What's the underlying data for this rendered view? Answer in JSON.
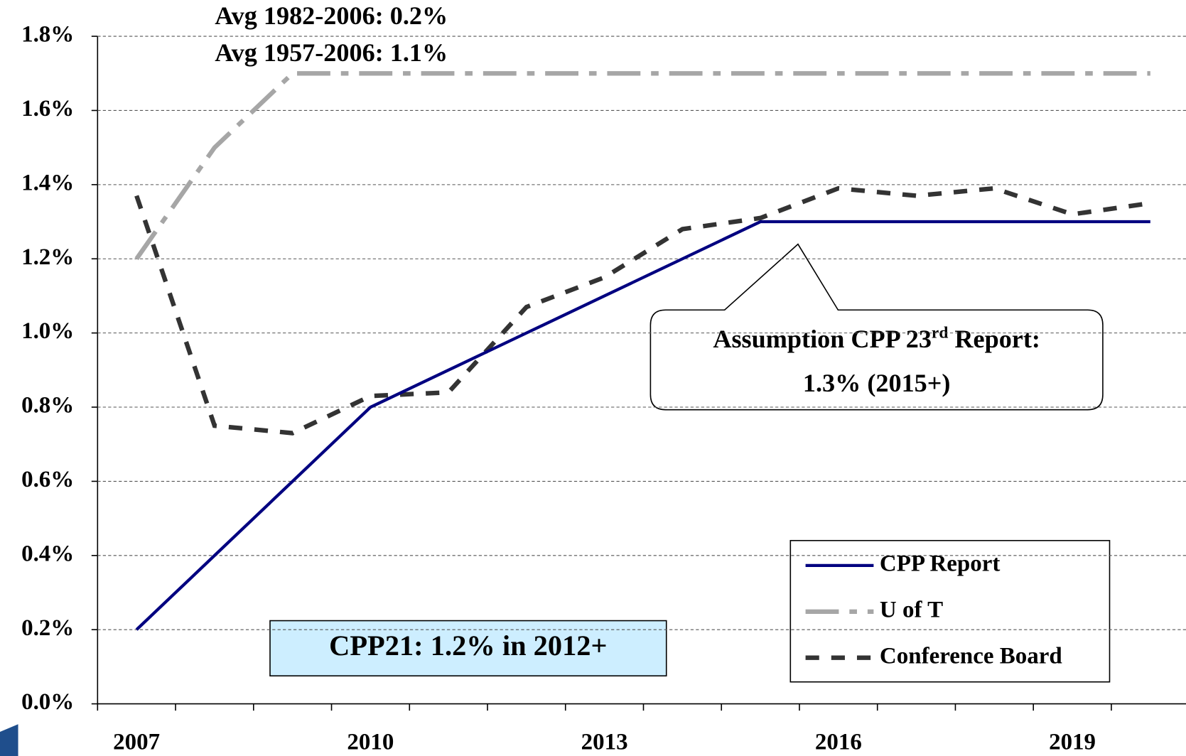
{
  "chart_data": {
    "type": "line",
    "categories": [
      "2007",
      null,
      null,
      "2010",
      null,
      null,
      "2013",
      null,
      null,
      "2016",
      null,
      null,
      "2019",
      null
    ],
    "series": [
      {
        "name": "CPP Report",
        "color": "#000080",
        "line_style": "solid",
        "values": [
          0.2,
          0.4,
          0.6,
          0.8,
          0.9,
          1.0,
          1.1,
          1.2,
          1.3,
          1.3,
          1.3,
          1.3,
          1.3,
          1.3
        ]
      },
      {
        "name": "U of T",
        "color": "#a6a6a6",
        "line_style": "dash-dot",
        "values": [
          1.2,
          1.5,
          1.7,
          1.7,
          1.7,
          1.7,
          1.7,
          1.7,
          1.7,
          1.7,
          1.7,
          1.7,
          1.7,
          1.7
        ]
      },
      {
        "name": "Conference Board",
        "color": "#333333",
        "line_style": "dashed",
        "values": [
          1.37,
          0.75,
          0.73,
          0.83,
          0.84,
          1.07,
          1.15,
          1.28,
          1.31,
          1.39,
          1.37,
          1.39,
          1.32,
          1.35
        ]
      }
    ],
    "ylim": [
      0,
      1.8
    ],
    "yticks": [
      {
        "value": 0,
        "label": "0.0%"
      },
      {
        "value": 0.2,
        "label": "0.2%"
      },
      {
        "value": 0.4,
        "label": "0.4%"
      },
      {
        "value": 0.6,
        "label": "0.6%"
      },
      {
        "value": 0.8,
        "label": "0.8%"
      },
      {
        "value": 1.0,
        "label": "1.0%"
      },
      {
        "value": 1.2,
        "label": "1.2%"
      },
      {
        "value": 1.4,
        "label": "1.4%"
      },
      {
        "value": 1.6,
        "label": "1.6%"
      },
      {
        "value": 1.8,
        "label": "1.8%"
      }
    ],
    "grid": true,
    "legend": "lower right",
    "annotations": {
      "avg_1982": "Avg 1982-2006: 0.2%",
      "avg_1957": "Avg 1957-2006: 1.1%",
      "callout_line1": [
        "Assumption CPP 23",
        "rd",
        " Report:"
      ],
      "callout_line2": "1.3% (2015+)",
      "box": "CPP21: 1.2% in 2012+"
    }
  }
}
